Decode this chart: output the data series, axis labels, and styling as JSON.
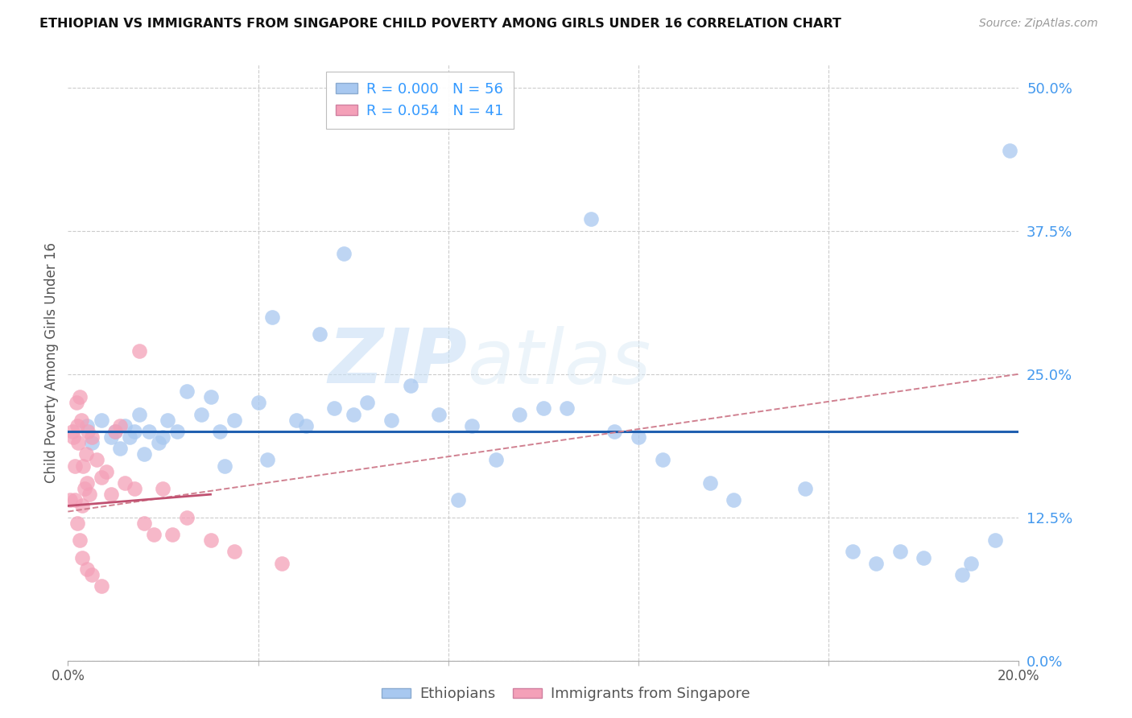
{
  "title": "ETHIOPIAN VS IMMIGRANTS FROM SINGAPORE CHILD POVERTY AMONG GIRLS UNDER 16 CORRELATION CHART",
  "source": "Source: ZipAtlas.com",
  "ylabel_label": "Child Poverty Among Girls Under 16",
  "ytick_labels": [
    "0.0%",
    "12.5%",
    "25.0%",
    "37.5%",
    "50.0%"
  ],
  "ytick_values": [
    0.0,
    12.5,
    25.0,
    37.5,
    50.0
  ],
  "xlim": [
    0.0,
    20.0
  ],
  "ylim": [
    0.0,
    52.0
  ],
  "legend_R_blue": "0.000",
  "legend_N_blue": "56",
  "legend_R_pink": "0.054",
  "legend_N_pink": "41",
  "blue_color": "#A8C8F0",
  "pink_color": "#F4A0B8",
  "blue_line_color": "#2060B0",
  "pink_line_color": "#C05070",
  "pink_dash_color": "#D08090",
  "watermark_zip": "ZIP",
  "watermark_atlas": "atlas",
  "legend_label_blue": "Ethiopians",
  "legend_label_pink": "Immigrants from Singapore",
  "blue_flat_y": 20.0,
  "pink_trend_x0": 0.0,
  "pink_trend_y0": 13.0,
  "pink_trend_x1": 20.0,
  "pink_trend_y1": 25.0,
  "pink_solid_x0": 0.0,
  "pink_solid_y0": 13.5,
  "pink_solid_x1": 3.0,
  "pink_solid_y1": 14.5,
  "ethiopian_x": [
    0.4,
    0.5,
    0.7,
    0.9,
    1.0,
    1.1,
    1.2,
    1.3,
    1.4,
    1.5,
    1.6,
    1.7,
    1.9,
    2.0,
    2.1,
    2.3,
    2.5,
    2.8,
    3.0,
    3.2,
    3.5,
    4.0,
    4.3,
    4.8,
    5.0,
    5.3,
    5.6,
    6.0,
    6.3,
    6.8,
    7.2,
    7.8,
    8.5,
    9.0,
    9.5,
    10.0,
    10.5,
    11.5,
    12.0,
    12.5,
    13.5,
    14.0,
    15.5,
    16.5,
    17.5,
    18.0,
    19.0,
    19.5,
    3.3,
    4.2,
    5.8,
    8.2,
    11.0,
    17.0,
    18.8,
    19.8
  ],
  "ethiopian_y": [
    20.5,
    19.0,
    21.0,
    19.5,
    20.0,
    18.5,
    20.5,
    19.5,
    20.0,
    21.5,
    18.0,
    20.0,
    19.0,
    19.5,
    21.0,
    20.0,
    23.5,
    21.5,
    23.0,
    20.0,
    21.0,
    22.5,
    30.0,
    21.0,
    20.5,
    28.5,
    22.0,
    21.5,
    22.5,
    21.0,
    24.0,
    21.5,
    20.5,
    17.5,
    21.5,
    22.0,
    22.0,
    20.0,
    19.5,
    17.5,
    15.5,
    14.0,
    15.0,
    9.5,
    9.5,
    9.0,
    8.5,
    10.5,
    17.0,
    17.5,
    35.5,
    14.0,
    38.5,
    8.5,
    7.5,
    44.5
  ],
  "singapore_x": [
    0.05,
    0.1,
    0.12,
    0.15,
    0.18,
    0.2,
    0.22,
    0.25,
    0.28,
    0.3,
    0.32,
    0.35,
    0.38,
    0.4,
    0.42,
    0.45,
    0.5,
    0.6,
    0.7,
    0.8,
    0.9,
    1.0,
    1.1,
    1.2,
    1.4,
    1.6,
    1.8,
    2.0,
    2.2,
    2.5,
    3.0,
    3.5,
    4.5,
    0.15,
    0.2,
    0.25,
    0.3,
    0.4,
    0.5,
    0.7,
    1.5
  ],
  "singapore_y": [
    14.0,
    20.0,
    19.5,
    17.0,
    22.5,
    20.5,
    19.0,
    23.0,
    21.0,
    13.5,
    17.0,
    15.0,
    18.0,
    15.5,
    20.0,
    14.5,
    19.5,
    17.5,
    16.0,
    16.5,
    14.5,
    20.0,
    20.5,
    15.5,
    15.0,
    12.0,
    11.0,
    15.0,
    11.0,
    12.5,
    10.5,
    9.5,
    8.5,
    14.0,
    12.0,
    10.5,
    9.0,
    8.0,
    7.5,
    6.5,
    27.0
  ]
}
